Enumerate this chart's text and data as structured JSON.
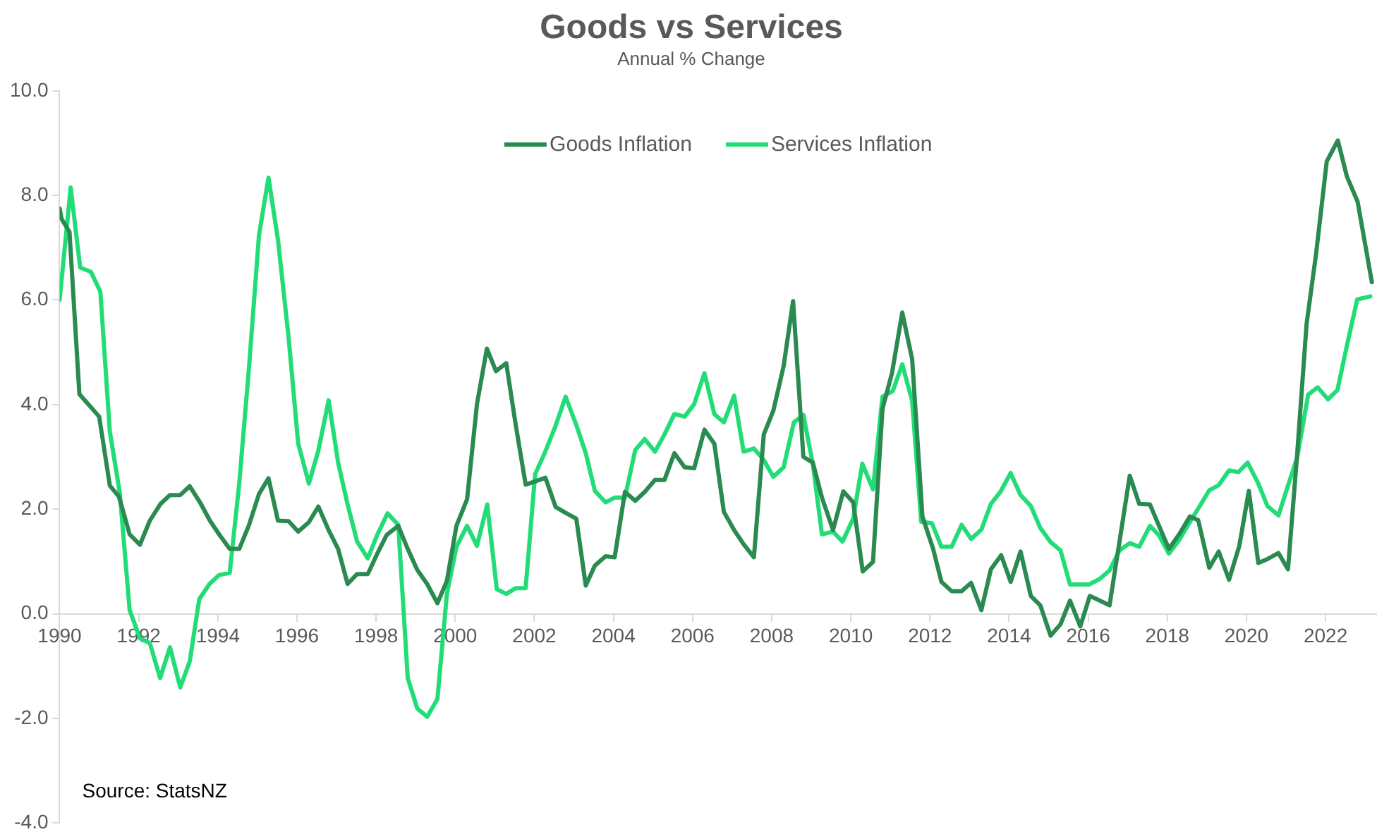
{
  "chart_data": {
    "type": "line",
    "title": "Goods vs Services",
    "subtitle": "Annual % Change",
    "annotations": [
      "Source: StatsNZ"
    ],
    "xlim": [
      1990,
      2023.3
    ],
    "xticks": [
      1990,
      1992,
      1994,
      1996,
      1998,
      2000,
      2002,
      2004,
      2006,
      2008,
      2010,
      2012,
      2014,
      2016,
      2018,
      2020,
      2022
    ],
    "ylim": [
      -4,
      10
    ],
    "yticks": [
      {
        "value": -4,
        "label": "-4.0"
      },
      {
        "value": -2,
        "label": "-2.0"
      },
      {
        "value": 0,
        "label": "0.0"
      },
      {
        "value": 2,
        "label": "2.0"
      },
      {
        "value": 4,
        "label": "4.0"
      },
      {
        "value": 6,
        "label": "6.0"
      },
      {
        "value": 8,
        "label": "8.0"
      },
      {
        "value": 10,
        "label": "10.0"
      }
    ],
    "grid": false,
    "legend": "top",
    "marker": "none",
    "line_style": "solid",
    "series": [
      {
        "name": "Goods Inflation",
        "color": "#2a8a50",
        "x": [
          1990,
          1990.05,
          1990.25,
          1990.5,
          1991,
          1991.27,
          1991.5,
          1991.77,
          1992.03,
          1992.28,
          1992.55,
          1992.79,
          1993.05,
          1993.29,
          1993.55,
          1993.8,
          1994.04,
          1994.3,
          1994.54,
          1994.78,
          1995.04,
          1995.28,
          1995.52,
          1995.79,
          1996.03,
          1996.3,
          1996.54,
          1996.8,
          1997.04,
          1997.28,
          1997.52,
          1997.79,
          1998.03,
          1998.27,
          1998.56,
          1998.8,
          1999.04,
          1999.29,
          1999.55,
          1999.79,
          2000.03,
          2000.3,
          2000.55,
          2000.8,
          2001.03,
          2001.29,
          2001.53,
          2001.78,
          2002.02,
          2002.28,
          2002.54,
          2002.79,
          2003.06,
          2003.3,
          2003.53,
          2003.8,
          2004.03,
          2004.29,
          2004.55,
          2004.79,
          2005.05,
          2005.29,
          2005.54,
          2005.8,
          2006.04,
          2006.3,
          2006.55,
          2006.79,
          2007.05,
          2007.29,
          2007.55,
          2007.8,
          2008.04,
          2008.3,
          2008.54,
          2008.8,
          2009.04,
          2009.27,
          2009.55,
          2009.81,
          2010.06,
          2010.3,
          2010.56,
          2010.8,
          2011.04,
          2011.3,
          2011.55,
          2011.81,
          2012.08,
          2012.29,
          2012.55,
          2012.8,
          2013.04,
          2013.3,
          2013.54,
          2013.8,
          2014.04,
          2014.29,
          2014.55,
          2014.79,
          2015.05,
          2015.3,
          2015.54,
          2015.8,
          2016.04,
          2016.3,
          2016.54,
          2017.05,
          2017.29,
          2017.56,
          2017.79,
          2018.04,
          2018.3,
          2018.57,
          2018.78,
          2019.06,
          2019.3,
          2019.56,
          2019.82,
          2020.06,
          2020.3,
          2020.54,
          2020.81,
          2021.05,
          2021.28,
          2021.52,
          2021.76,
          2022.03,
          2022.31,
          2022.54,
          2022.81,
          2023.17
        ],
        "values": [
          7.75,
          7.55,
          7.3,
          4.2,
          3.77,
          2.45,
          2.24,
          1.52,
          1.32,
          1.78,
          2.1,
          2.27,
          2.27,
          2.44,
          2.13,
          1.78,
          1.51,
          1.24,
          1.24,
          1.68,
          2.29,
          2.59,
          1.78,
          1.77,
          1.57,
          1.75,
          2.05,
          1.6,
          1.24,
          0.57,
          0.76,
          0.76,
          1.15,
          1.51,
          1.68,
          1.24,
          0.84,
          0.57,
          0.2,
          0.63,
          1.68,
          2.19,
          4.01,
          5.07,
          4.64,
          4.79,
          3.61,
          2.47,
          2.53,
          2.6,
          2.04,
          1.93,
          1.82,
          0.54,
          0.92,
          1.1,
          1.08,
          2.33,
          2.16,
          2.33,
          2.56,
          2.56,
          3.07,
          2.8,
          2.78,
          3.52,
          3.25,
          1.95,
          1.6,
          1.33,
          1.08,
          3.43,
          3.88,
          4.73,
          5.98,
          3.0,
          2.89,
          2.22,
          1.6,
          2.34,
          2.13,
          0.81,
          0.99,
          3.92,
          4.6,
          5.76,
          4.87,
          1.86,
          1.24,
          0.61,
          0.43,
          0.43,
          0.59,
          0.07,
          0.85,
          1.12,
          0.61,
          1.19,
          0.34,
          0.16,
          -0.42,
          -0.2,
          0.25,
          -0.24,
          0.34,
          0.25,
          0.16,
          2.64,
          2.1,
          2.09,
          1.68,
          1.24,
          1.52,
          1.86,
          1.79,
          0.88,
          1.19,
          0.65,
          1.3,
          2.35,
          0.97,
          1.05,
          1.16,
          0.85,
          3.03,
          5.54,
          6.88,
          8.65,
          9.05,
          8.36,
          7.88,
          6.34
        ]
      },
      {
        "name": "Services Inflation",
        "color": "#22dd77",
        "x": [
          1990,
          1990.28,
          1990.52,
          1990.79,
          1991.03,
          1991.27,
          1991.52,
          1991.77,
          1992.03,
          1992.28,
          1992.54,
          1992.79,
          1993.05,
          1993.29,
          1993.53,
          1993.79,
          1994.03,
          1994.3,
          1994.54,
          1994.78,
          1995.04,
          1995.28,
          1995.52,
          1995.79,
          1996.03,
          1996.3,
          1996.54,
          1996.8,
          1997.04,
          1997.28,
          1997.52,
          1997.79,
          1998.03,
          1998.29,
          1998.56,
          1998.8,
          1999.04,
          1999.29,
          1999.55,
          1999.79,
          2000.03,
          2000.3,
          2000.55,
          2000.81,
          2001.05,
          2001.29,
          2001.53,
          2001.78,
          2002.02,
          2002.26,
          2002.52,
          2002.79,
          2003.06,
          2003.3,
          2003.53,
          2003.8,
          2004.03,
          2004.29,
          2004.55,
          2004.79,
          2005.05,
          2005.29,
          2005.54,
          2005.8,
          2006.04,
          2006.3,
          2006.55,
          2006.79,
          2007.05,
          2007.29,
          2007.55,
          2007.8,
          2008.04,
          2008.3,
          2008.56,
          2008.8,
          2009.04,
          2009.27,
          2009.55,
          2009.79,
          2010.06,
          2010.29,
          2010.56,
          2010.8,
          2011.06,
          2011.3,
          2011.55,
          2011.78,
          2012.05,
          2012.29,
          2012.55,
          2012.8,
          2013.04,
          2013.3,
          2013.54,
          2013.78,
          2014.04,
          2014.29,
          2014.55,
          2014.79,
          2015.05,
          2015.3,
          2015.54,
          2015.8,
          2016.02,
          2016.3,
          2016.54,
          2016.79,
          2017.05,
          2017.29,
          2017.56,
          2017.79,
          2018.04,
          2018.3,
          2018.55,
          2018.82,
          2019.06,
          2019.3,
          2019.56,
          2019.8,
          2020.03,
          2020.3,
          2020.53,
          2020.81,
          2021.05,
          2021.28,
          2021.56,
          2021.8,
          2022.06,
          2022.3,
          2022.54,
          2022.8,
          2023.13
        ],
        "values": [
          6.0,
          8.15,
          6.62,
          6.54,
          6.16,
          3.48,
          2.32,
          0.07,
          -0.47,
          -0.56,
          -1.23,
          -0.64,
          -1.41,
          -0.91,
          0.28,
          0.57,
          0.74,
          0.78,
          2.49,
          4.64,
          7.24,
          8.34,
          7.15,
          5.27,
          3.26,
          2.49,
          3.12,
          4.08,
          2.89,
          2.09,
          1.38,
          1.06,
          1.51,
          1.92,
          1.7,
          -1.23,
          -1.81,
          -1.97,
          -1.63,
          0.38,
          1.28,
          1.68,
          1.3,
          2.09,
          0.47,
          0.38,
          0.49,
          0.49,
          2.67,
          3.07,
          3.56,
          4.15,
          3.61,
          3.07,
          2.35,
          2.13,
          2.22,
          2.22,
          3.13,
          3.34,
          3.1,
          3.43,
          3.82,
          3.77,
          4.01,
          4.6,
          3.82,
          3.66,
          4.17,
          3.1,
          3.16,
          2.94,
          2.62,
          2.8,
          3.66,
          3.8,
          2.86,
          1.52,
          1.57,
          1.38,
          1.82,
          2.87,
          2.38,
          4.15,
          4.26,
          4.77,
          4.07,
          1.76,
          1.73,
          1.28,
          1.28,
          1.7,
          1.43,
          1.61,
          2.1,
          2.33,
          2.69,
          2.27,
          2.06,
          1.64,
          1.37,
          1.21,
          0.56,
          0.56,
          0.56,
          0.67,
          0.83,
          1.21,
          1.35,
          1.28,
          1.68,
          1.5,
          1.15,
          1.41,
          1.73,
          2.06,
          2.36,
          2.46,
          2.74,
          2.71,
          2.89,
          2.49,
          2.06,
          1.88,
          2.45,
          2.98,
          4.19,
          4.33,
          4.1,
          4.28,
          5.13,
          6.01,
          6.07
        ]
      }
    ]
  }
}
